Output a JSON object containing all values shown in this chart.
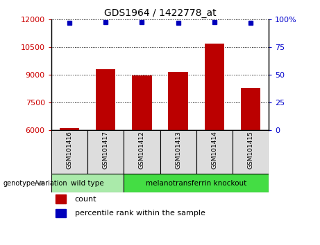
{
  "title": "GDS1964 / 1422778_at",
  "samples": [
    "GSM101416",
    "GSM101417",
    "GSM101412",
    "GSM101413",
    "GSM101414",
    "GSM101415"
  ],
  "bar_values": [
    6100,
    9300,
    8950,
    9150,
    10700,
    8300
  ],
  "percentile_values": [
    97,
    98,
    98,
    97,
    98,
    97
  ],
  "bar_color": "#bb0000",
  "percentile_color": "#0000bb",
  "ylim_left": [
    6000,
    12000
  ],
  "ylim_right": [
    0,
    100
  ],
  "yticks_left": [
    6000,
    7500,
    9000,
    10500,
    12000
  ],
  "yticks_right": [
    0,
    25,
    50,
    75,
    100
  ],
  "ytick_right_labels": [
    "0",
    "25",
    "50",
    "75",
    "100%"
  ],
  "groups": [
    {
      "label": "wild type",
      "indices": [
        0,
        1
      ],
      "color": "#aaeaaa"
    },
    {
      "label": "melanotransferrin knockout",
      "indices": [
        2,
        3,
        4,
        5
      ],
      "color": "#44dd44"
    }
  ],
  "group_label": "genotype/variation",
  "legend_count": "count",
  "legend_percentile": "percentile rank within the sample",
  "background_color": "#ffffff",
  "plot_bg_color": "#ffffff",
  "sample_box_color": "#dddddd",
  "grid_color": "#000000",
  "bar_width": 0.55,
  "tick_label_color_left": "#cc0000",
  "tick_label_color_right": "#0000cc"
}
